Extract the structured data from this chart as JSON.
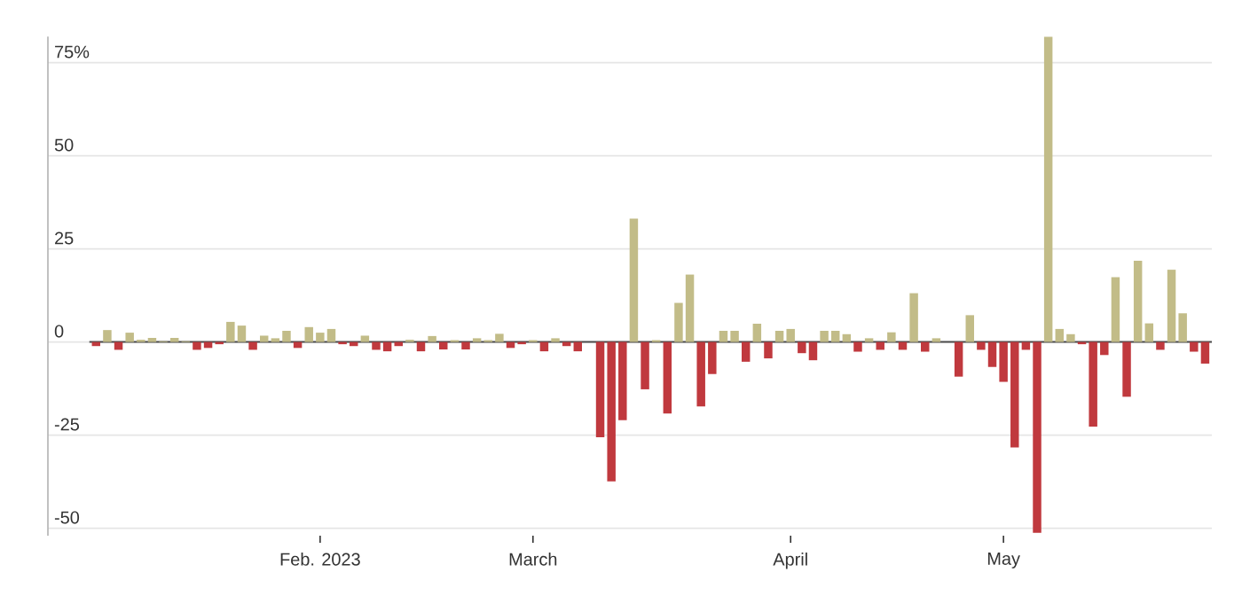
{
  "chart_data": {
    "type": "bar",
    "categories": [
      null,
      null,
      null,
      null,
      null,
      null,
      null,
      null,
      null,
      null,
      null,
      null,
      null,
      null,
      null,
      null,
      null,
      null,
      null,
      null,
      "Feb. 2023",
      null,
      null,
      null,
      null,
      null,
      null,
      null,
      null,
      null,
      null,
      null,
      null,
      null,
      null,
      null,
      null,
      null,
      null,
      "March",
      null,
      null,
      null,
      null,
      null,
      null,
      null,
      null,
      null,
      null,
      null,
      null,
      null,
      null,
      null,
      null,
      null,
      null,
      null,
      null,
      null,
      null,
      "April",
      null,
      null,
      null,
      null,
      null,
      null,
      null,
      null,
      null,
      null,
      null,
      null,
      null,
      null,
      null,
      null,
      null,
      null,
      "May",
      null,
      null,
      null,
      null,
      null,
      null,
      null,
      null,
      null,
      null,
      null,
      null,
      null,
      null,
      null,
      null,
      null,
      null
    ],
    "values": [
      -1.1,
      3.2,
      -2.1,
      2.5,
      0.6,
      1.1,
      0.2,
      1.1,
      0.2,
      -2.1,
      -1.6,
      -0.6,
      5.4,
      4.4,
      -2.1,
      1.7,
      1,
      3,
      -1.6,
      4,
      2.5,
      3.5,
      -0.6,
      -1.1,
      1.7,
      -2.1,
      -2.5,
      -1.1,
      0.6,
      -2.5,
      1.6,
      -2,
      0.5,
      -2,
      1,
      0.5,
      2.2,
      -1.6,
      -0.6,
      0.5,
      -2.5,
      1,
      -1.1,
      -2.5,
      0,
      -25.6,
      -37.4,
      -21,
      33.1,
      -12.7,
      0.5,
      -19.2,
      10.5,
      18.1,
      -17.3,
      -8.6,
      3,
      3,
      -5.3,
      4.9,
      -4.4,
      3,
      3.5,
      -3,
      -4.9,
      3,
      3,
      2.1,
      -2.6,
      1,
      -2.1,
      2.6,
      -2.1,
      13.1,
      -2.6,
      1,
      0,
      -9.3,
      7.2,
      -2.1,
      -6.7,
      -10.7,
      -28.3,
      -2.1,
      -51.2,
      81.9,
      3.5,
      2.1,
      -0.6,
      -22.7,
      -3.5,
      17.4,
      -14.7,
      21.8,
      5,
      -2.1,
      19.4,
      7.7,
      -2.6,
      -5.8
    ],
    "colors": [
      "#c0393e",
      "#c2bc88",
      "#c0393e",
      "#c2bc88",
      "#c2bc88",
      "#c2bc88",
      "#c2bc88",
      "#c2bc88",
      "#c2bc88",
      "#c0393e",
      "#c0393e",
      "#c0393e",
      "#c2bc88",
      "#c2bc88",
      "#c0393e",
      "#c2bc88",
      "#c2bc88",
      "#c2bc88",
      "#c0393e",
      "#c2bc88",
      "#c2bc88",
      "#c2bc88",
      "#c0393e",
      "#c0393e",
      "#c2bc88",
      "#c0393e",
      "#c0393e",
      "#c0393e",
      "#c2bc88",
      "#c0393e",
      "#c2bc88",
      "#c0393e",
      "#c2bc88",
      "#c0393e",
      "#c2bc88",
      "#c2bc88",
      "#c2bc88",
      "#c0393e",
      "#c0393e",
      "#c2bc88",
      "#c0393e",
      "#c2bc88",
      "#c0393e",
      "#c0393e",
      "#c2bc88",
      "#c0393e",
      "#c0393e",
      "#c0393e",
      "#c2bc88",
      "#c0393e",
      "#c2bc88",
      "#c0393e",
      "#c2bc88",
      "#c2bc88",
      "#c0393e",
      "#c0393e",
      "#c2bc88",
      "#c2bc88",
      "#c0393e",
      "#c2bc88",
      "#c0393e",
      "#c2bc88",
      "#c2bc88",
      "#c0393e",
      "#c0393e",
      "#c2bc88",
      "#c2bc88",
      "#c2bc88",
      "#c0393e",
      "#c2bc88",
      "#c0393e",
      "#c2bc88",
      "#c0393e",
      "#c2bc88",
      "#c0393e",
      "#c2bc88",
      "#c2bc88",
      "#c0393e",
      "#c2bc88",
      "#c0393e",
      "#c0393e",
      "#c0393e",
      "#c0393e",
      "#c0393e",
      "#c0393e",
      "#c2bc88",
      "#c2bc88",
      "#c2bc88",
      "#c0393e",
      "#c0393e",
      "#c0393e",
      "#c2bc88",
      "#c0393e",
      "#c2bc88",
      "#c2bc88",
      "#c0393e",
      "#c2bc88",
      "#c2bc88",
      "#c0393e",
      "#c0393e"
    ],
    "yticks": [
      {
        "value": 75,
        "label": "75%"
      },
      50,
      25,
      0,
      -25,
      -50
    ],
    "ylim": [
      -52,
      82
    ],
    "grid": "y"
  }
}
